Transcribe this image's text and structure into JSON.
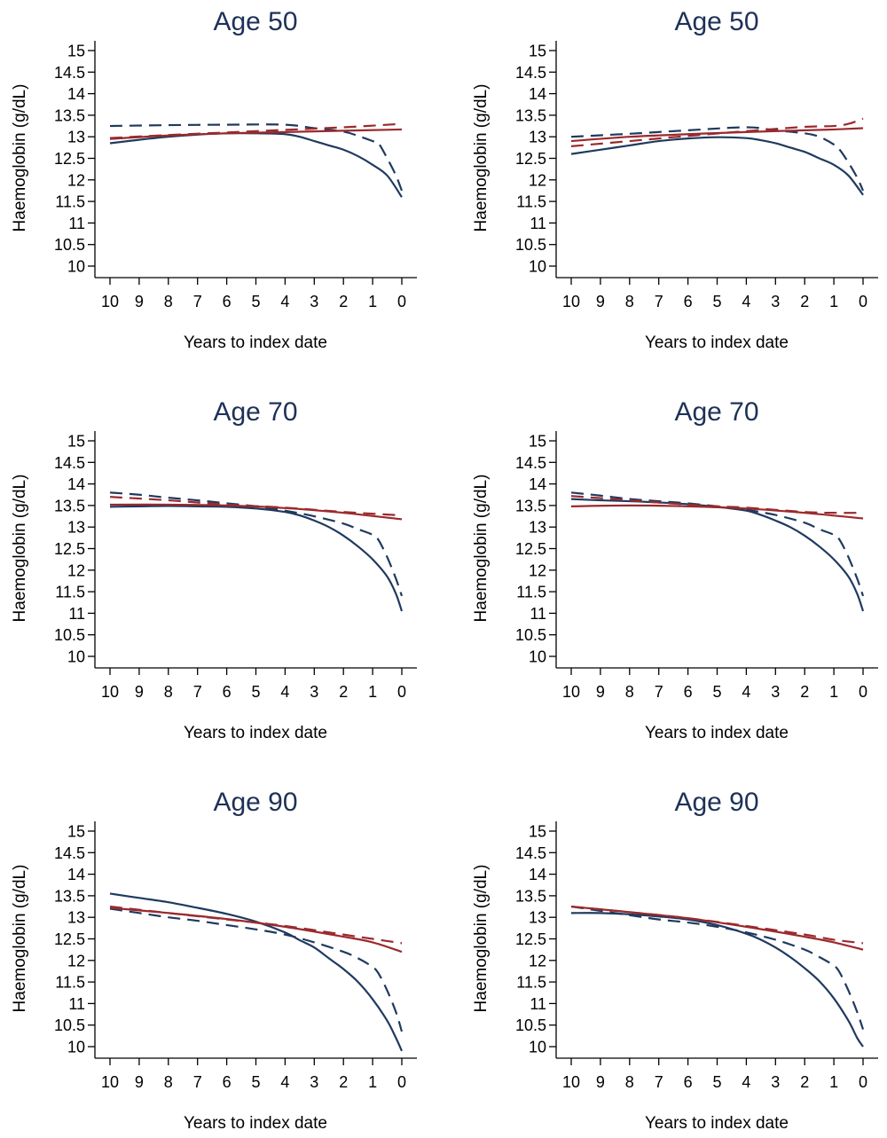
{
  "colors": {
    "blue": "#1f3a5f",
    "red": "#9a2a2e"
  },
  "chart_data": [
    {
      "type": "line",
      "title": "Age 50",
      "xlabel": "Years to index date",
      "ylabel": "Haemoglobin (g/dL)",
      "xlim": [
        10,
        0
      ],
      "ylim": [
        10,
        15
      ],
      "xticks": [
        10,
        9,
        8,
        7,
        6,
        5,
        4,
        3,
        2,
        1,
        0
      ],
      "yticks": [
        10,
        10.5,
        11,
        11.5,
        12,
        12.5,
        13,
        13.5,
        14,
        14.5,
        15
      ],
      "series": [
        {
          "color": "blue",
          "dash": "solid",
          "x": [
            10,
            9,
            8,
            7,
            6,
            5,
            4,
            3.5,
            3,
            2.5,
            2,
            1.5,
            1,
            0.5,
            0
          ],
          "y": [
            12.85,
            12.93,
            13.0,
            13.05,
            13.08,
            13.08,
            13.06,
            13.0,
            12.9,
            12.8,
            12.7,
            12.55,
            12.35,
            12.1,
            11.6
          ]
        },
        {
          "color": "blue",
          "dash": "dashed",
          "x": [
            10,
            8,
            6,
            4,
            3,
            2,
            1.5,
            1,
            0.8,
            0.5,
            0.2,
            0
          ],
          "y": [
            13.25,
            13.27,
            13.28,
            13.28,
            13.2,
            13.12,
            13.02,
            12.9,
            12.85,
            12.5,
            12.1,
            11.75
          ]
        },
        {
          "color": "red",
          "dash": "solid",
          "x": [
            10,
            8,
            6,
            4,
            2,
            0
          ],
          "y": [
            12.95,
            13.03,
            13.08,
            13.11,
            13.14,
            13.17
          ]
        },
        {
          "color": "red",
          "dash": "dashed",
          "x": [
            10,
            8,
            6,
            4,
            2,
            0
          ],
          "y": [
            12.97,
            13.04,
            13.1,
            13.16,
            13.22,
            13.3
          ]
        }
      ]
    },
    {
      "type": "line",
      "title": "Age 50",
      "xlabel": "Years to index date",
      "ylabel": "Haemoglobin (g/dL)",
      "xlim": [
        10,
        0
      ],
      "ylim": [
        10,
        15
      ],
      "xticks": [
        10,
        9,
        8,
        7,
        6,
        5,
        4,
        3,
        2,
        1,
        0
      ],
      "yticks": [
        10,
        10.5,
        11,
        11.5,
        12,
        12.5,
        13,
        13.5,
        14,
        14.5,
        15
      ],
      "series": [
        {
          "color": "blue",
          "dash": "solid",
          "x": [
            10,
            9,
            8,
            7,
            6,
            5,
            4,
            3.5,
            3,
            2.5,
            2,
            1.5,
            1,
            0.5,
            0
          ],
          "y": [
            12.6,
            12.7,
            12.8,
            12.9,
            12.96,
            12.99,
            12.97,
            12.92,
            12.85,
            12.75,
            12.65,
            12.5,
            12.35,
            12.1,
            11.65
          ]
        },
        {
          "color": "blue",
          "dash": "dashed",
          "x": [
            10,
            8,
            6,
            4,
            3,
            2,
            1.5,
            1,
            0.8,
            0.5,
            0.2,
            0
          ],
          "y": [
            13.0,
            13.07,
            13.15,
            13.22,
            13.15,
            13.08,
            13.0,
            12.82,
            12.7,
            12.4,
            12.05,
            11.75
          ]
        },
        {
          "color": "red",
          "dash": "solid",
          "x": [
            10,
            8,
            6,
            4,
            2,
            1,
            0
          ],
          "y": [
            12.9,
            13.0,
            13.06,
            13.11,
            13.15,
            13.17,
            13.2
          ]
        },
        {
          "color": "red",
          "dash": "dashed",
          "x": [
            10,
            8,
            6,
            4,
            2,
            1,
            0.5,
            0
          ],
          "y": [
            12.78,
            12.9,
            13.02,
            13.13,
            13.23,
            13.25,
            13.3,
            13.42
          ]
        }
      ]
    },
    {
      "type": "line",
      "title": "Age 70",
      "xlabel": "Years to index date",
      "ylabel": "Haemoglobin (g/dL)",
      "xlim": [
        10,
        0
      ],
      "ylim": [
        10,
        15
      ],
      "xticks": [
        10,
        9,
        8,
        7,
        6,
        5,
        4,
        3,
        2,
        1,
        0
      ],
      "yticks": [
        10,
        10.5,
        11,
        11.5,
        12,
        12.5,
        13,
        13.5,
        14,
        14.5,
        15
      ],
      "series": [
        {
          "color": "blue",
          "dash": "solid",
          "x": [
            10,
            9,
            8,
            7,
            6,
            5,
            4,
            3.5,
            3,
            2.5,
            2,
            1.5,
            1,
            0.5,
            0.2,
            0
          ],
          "y": [
            13.47,
            13.48,
            13.49,
            13.48,
            13.47,
            13.43,
            13.35,
            13.27,
            13.15,
            13.0,
            12.8,
            12.55,
            12.25,
            11.85,
            11.45,
            11.05
          ]
        },
        {
          "color": "blue",
          "dash": "dashed",
          "x": [
            10,
            9,
            8,
            7,
            6,
            5,
            4,
            3,
            2,
            1.5,
            1,
            0.8,
            0.5,
            0.2,
            0
          ],
          "y": [
            13.8,
            13.75,
            13.68,
            13.62,
            13.55,
            13.48,
            13.38,
            13.25,
            13.08,
            12.95,
            12.82,
            12.7,
            12.3,
            11.8,
            11.4
          ]
        },
        {
          "color": "red",
          "dash": "solid",
          "x": [
            10,
            8,
            6,
            4,
            2,
            0
          ],
          "y": [
            13.52,
            13.52,
            13.5,
            13.44,
            13.33,
            13.18
          ]
        },
        {
          "color": "red",
          "dash": "dashed",
          "x": [
            10,
            8,
            6,
            4,
            2,
            0
          ],
          "y": [
            13.7,
            13.62,
            13.52,
            13.45,
            13.35,
            13.27
          ]
        }
      ]
    },
    {
      "type": "line",
      "title": "Age 70",
      "xlabel": "Years to index date",
      "ylabel": "Haemoglobin (g/dL)",
      "xlim": [
        10,
        0
      ],
      "ylim": [
        10,
        15
      ],
      "xticks": [
        10,
        9,
        8,
        7,
        6,
        5,
        4,
        3,
        2,
        1,
        0
      ],
      "yticks": [
        10,
        10.5,
        11,
        11.5,
        12,
        12.5,
        13,
        13.5,
        14,
        14.5,
        15
      ],
      "series": [
        {
          "color": "blue",
          "dash": "solid",
          "x": [
            10,
            9,
            8,
            7,
            6,
            5,
            4,
            3.5,
            3,
            2.5,
            2,
            1.5,
            1,
            0.5,
            0.2,
            0
          ],
          "y": [
            13.65,
            13.62,
            13.6,
            13.57,
            13.53,
            13.47,
            13.38,
            13.28,
            13.15,
            13.0,
            12.8,
            12.55,
            12.25,
            11.85,
            11.45,
            11.05
          ]
        },
        {
          "color": "blue",
          "dash": "dashed",
          "x": [
            10,
            9,
            8,
            7,
            6,
            5,
            4,
            3,
            2,
            1.5,
            1,
            0.8,
            0.5,
            0.2,
            0
          ],
          "y": [
            13.8,
            13.73,
            13.65,
            13.6,
            13.55,
            13.48,
            13.4,
            13.28,
            13.1,
            12.95,
            12.82,
            12.7,
            12.3,
            11.8,
            11.4
          ]
        },
        {
          "color": "red",
          "dash": "solid",
          "x": [
            10,
            8,
            6,
            4,
            2,
            0
          ],
          "y": [
            13.48,
            13.5,
            13.48,
            13.43,
            13.33,
            13.2
          ]
        },
        {
          "color": "red",
          "dash": "dashed",
          "x": [
            10,
            8,
            6,
            5,
            4,
            2,
            1,
            0
          ],
          "y": [
            13.72,
            13.62,
            13.52,
            13.48,
            13.45,
            13.35,
            13.33,
            13.33
          ]
        }
      ]
    },
    {
      "type": "line",
      "title": "Age 90",
      "xlabel": "Years to index date",
      "ylabel": "Haemoglobin (g/dL)",
      "xlim": [
        10,
        0
      ],
      "ylim": [
        10,
        15
      ],
      "xticks": [
        10,
        9,
        8,
        7,
        6,
        5,
        4,
        3,
        2,
        1,
        0
      ],
      "yticks": [
        10,
        10.5,
        11,
        11.5,
        12,
        12.5,
        13,
        13.5,
        14,
        14.5,
        15
      ],
      "series": [
        {
          "color": "blue",
          "dash": "solid",
          "x": [
            10,
            9,
            8,
            7,
            6,
            5,
            4,
            3.5,
            3,
            2.5,
            2,
            1.5,
            1,
            0.5,
            0.2,
            0
          ],
          "y": [
            13.55,
            13.45,
            13.35,
            13.22,
            13.08,
            12.9,
            12.65,
            12.47,
            12.3,
            12.05,
            11.8,
            11.5,
            11.1,
            10.6,
            10.2,
            9.9
          ]
        },
        {
          "color": "blue",
          "dash": "dashed",
          "x": [
            10,
            9,
            8,
            7,
            6,
            5,
            4,
            3,
            2,
            1.5,
            1,
            0.8,
            0.5,
            0.2,
            0
          ],
          "y": [
            13.2,
            13.1,
            13.0,
            12.92,
            12.82,
            12.72,
            12.6,
            12.42,
            12.2,
            12.05,
            11.85,
            11.7,
            11.3,
            10.8,
            10.35
          ]
        },
        {
          "color": "red",
          "dash": "solid",
          "x": [
            10,
            8,
            6,
            4,
            2,
            1,
            0
          ],
          "y": [
            13.22,
            13.1,
            12.96,
            12.78,
            12.55,
            12.42,
            12.2
          ]
        },
        {
          "color": "red",
          "dash": "dashed",
          "x": [
            10,
            8,
            6,
            4,
            2,
            1,
            0
          ],
          "y": [
            13.25,
            13.1,
            12.95,
            12.8,
            12.6,
            12.5,
            12.4
          ]
        }
      ]
    },
    {
      "type": "line",
      "title": "Age 90",
      "xlabel": "Years to index date",
      "ylabel": "Haemoglobin (g/dL)",
      "xlim": [
        10,
        0
      ],
      "ylim": [
        10,
        15
      ],
      "xticks": [
        10,
        9,
        8,
        7,
        6,
        5,
        4,
        3,
        2,
        1,
        0
      ],
      "yticks": [
        10,
        10.5,
        11,
        11.5,
        12,
        12.5,
        13,
        13.5,
        14,
        14.5,
        15
      ],
      "series": [
        {
          "color": "blue",
          "dash": "solid",
          "x": [
            10,
            9,
            8,
            7,
            6,
            5,
            4,
            3.5,
            3,
            2.5,
            2,
            1.5,
            1,
            0.5,
            0.2,
            0
          ],
          "y": [
            13.1,
            13.1,
            13.07,
            13.02,
            12.95,
            12.82,
            12.62,
            12.48,
            12.3,
            12.08,
            11.82,
            11.52,
            11.12,
            10.6,
            10.2,
            10.0
          ]
        },
        {
          "color": "blue",
          "dash": "dashed",
          "x": [
            10,
            9,
            8,
            7,
            6,
            5,
            4,
            3,
            2,
            1.5,
            1,
            0.8,
            0.5,
            0.2,
            0
          ],
          "y": [
            13.25,
            13.15,
            13.05,
            12.95,
            12.88,
            12.78,
            12.65,
            12.48,
            12.25,
            12.08,
            11.88,
            11.72,
            11.3,
            10.8,
            10.4
          ]
        },
        {
          "color": "red",
          "dash": "solid",
          "x": [
            10,
            8,
            6,
            4,
            2,
            1,
            0
          ],
          "y": [
            13.25,
            13.12,
            12.98,
            12.78,
            12.55,
            12.42,
            12.25
          ]
        },
        {
          "color": "red",
          "dash": "dashed",
          "x": [
            10,
            8,
            6,
            4,
            2,
            1,
            0
          ],
          "y": [
            13.25,
            13.12,
            12.98,
            12.8,
            12.6,
            12.48,
            12.4
          ]
        }
      ]
    }
  ]
}
